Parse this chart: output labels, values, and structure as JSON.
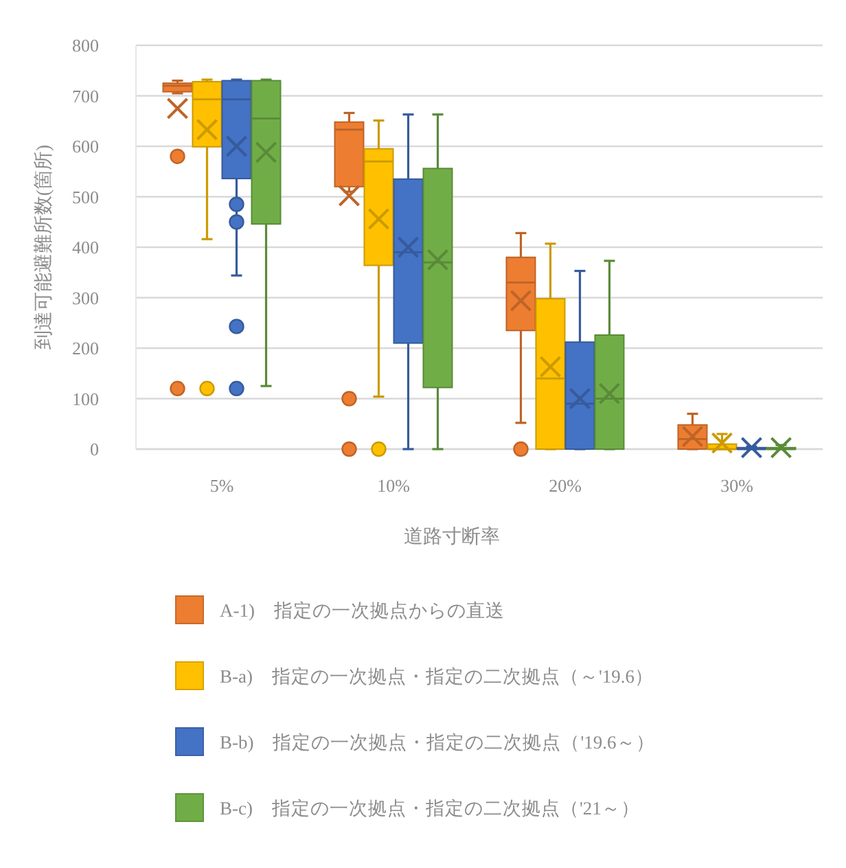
{
  "chart_data": {
    "type": "box",
    "xlabel": "道路寸断率",
    "ylabel": "到達可能避難所数(箇所)",
    "categories": [
      "5%",
      "10%",
      "20%",
      "30%"
    ],
    "ylim": [
      0,
      800
    ],
    "yticks": [
      0,
      100,
      200,
      300,
      400,
      500,
      600,
      700,
      800
    ],
    "grid": "y",
    "legend": "bottom",
    "series": [
      {
        "name": "A-1)　指定の一次拠点からの直送",
        "color": "#ed7d31",
        "boxes": [
          {
            "low": 705,
            "q1": 708,
            "median": 720,
            "q3": 725,
            "high": 730,
            "mean": 675,
            "outliers": [
              580,
              120
            ]
          },
          {
            "low": 510,
            "q1": 520,
            "median": 633,
            "q3": 648,
            "high": 666,
            "mean": 502,
            "outliers": [
              100,
              0
            ]
          },
          {
            "low": 52,
            "q1": 235,
            "median": 330,
            "q3": 380,
            "high": 428,
            "mean": 294,
            "outliers": [
              0
            ]
          },
          {
            "low": 0,
            "q1": 0,
            "median": 20,
            "q3": 48,
            "high": 70,
            "mean": 25
          }
        ]
      },
      {
        "name": "B-a)　指定の一次拠点・指定の二次拠点（～'19.6）",
        "color": "#ffc000",
        "boxes": [
          {
            "low": 416,
            "q1": 599,
            "median": 693,
            "q3": 728,
            "high": 732,
            "mean": 633,
            "outliers": [
              120
            ]
          },
          {
            "low": 104,
            "q1": 364,
            "median": 570,
            "q3": 595,
            "high": 651,
            "mean": 456,
            "outliers": [
              0
            ]
          },
          {
            "low": 0,
            "q1": 0,
            "median": 140,
            "q3": 298,
            "high": 407,
            "mean": 163
          },
          {
            "low": 0,
            "q1": 0,
            "median": 0,
            "q3": 10,
            "high": 30,
            "mean": 12
          }
        ]
      },
      {
        "name": "B-b)　指定の一次拠点・指定の二次拠点（'19.6～）",
        "color": "#4472c4",
        "boxes": [
          {
            "low": 344,
            "q1": 536,
            "median": 693,
            "q3": 730,
            "high": 732,
            "mean": 600,
            "outliers": [
              485,
              450,
              243,
              120
            ]
          },
          {
            "low": 0,
            "q1": 210,
            "median": 390,
            "q3": 535,
            "high": 663,
            "mean": 400
          },
          {
            "low": 0,
            "q1": 0,
            "median": 90,
            "q3": 212,
            "high": 353,
            "mean": 100
          },
          {
            "low": 0,
            "q1": 0,
            "median": 0,
            "q3": 3,
            "high": 5,
            "mean": 3
          }
        ]
      },
      {
        "name": "B-c)　指定の一次拠点・指定の二次拠点（'21～）",
        "color": "#70ad47",
        "boxes": [
          {
            "low": 125,
            "q1": 446,
            "median": 655,
            "q3": 730,
            "high": 732,
            "mean": 588
          },
          {
            "low": 0,
            "q1": 122,
            "median": 370,
            "q3": 556,
            "high": 663,
            "mean": 375
          },
          {
            "low": 0,
            "q1": 0,
            "median": 100,
            "q3": 226,
            "high": 373,
            "mean": 110
          },
          {
            "low": 0,
            "q1": 0,
            "median": 0,
            "q3": 3,
            "high": 8,
            "mean": 3
          }
        ]
      }
    ]
  }
}
